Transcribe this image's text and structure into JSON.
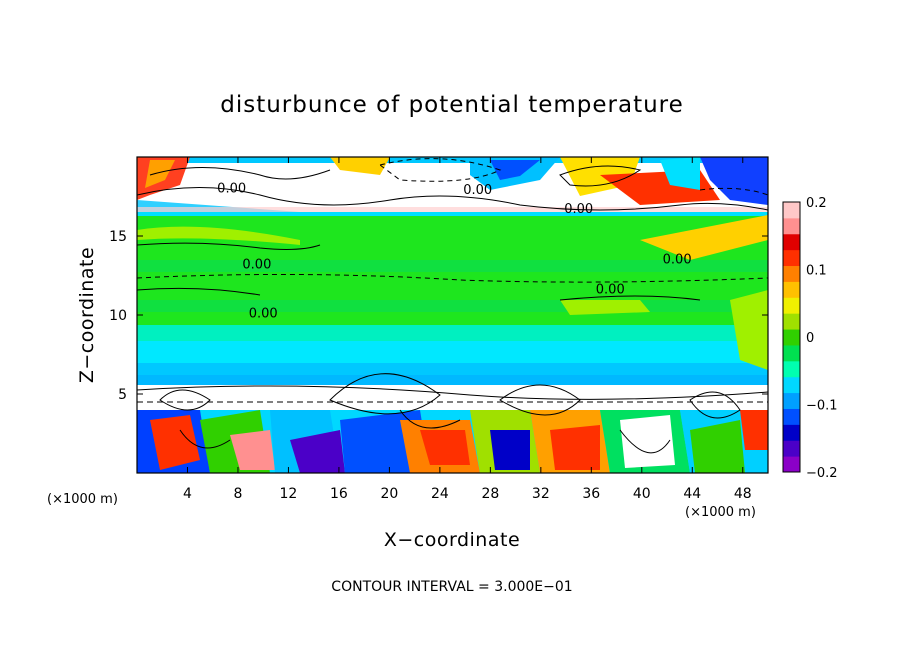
{
  "chart_data": {
    "type": "heatmap",
    "title": "disturbunce of potential temperature",
    "xlabel": "X−coordinate",
    "ylabel": "Z−coordinate",
    "x_unit": "(×1000 m)",
    "y_unit": "(×1000 m)",
    "xlim": [
      0,
      50
    ],
    "ylim": [
      0,
      20
    ],
    "x_ticks": [
      4,
      8,
      12,
      16,
      20,
      24,
      28,
      32,
      36,
      40,
      44,
      48
    ],
    "y_ticks": [
      5,
      10,
      15
    ],
    "colorbar": {
      "min": -0.2,
      "max": 0.2,
      "ticks": [
        {
          "value": 0.2,
          "label": "0.2"
        },
        {
          "value": 0.1,
          "label": "0.1"
        },
        {
          "value": 0,
          "label": "0"
        },
        {
          "value": -0.1,
          "label": "−0.1"
        },
        {
          "value": -0.2,
          "label": "−0.2"
        }
      ],
      "colors": [
        "#8b00c8",
        "#4b00c8",
        "#0000c8",
        "#0050ff",
        "#00a0ff",
        "#00d8ff",
        "#00ffb0",
        "#00e050",
        "#30d000",
        "#a0e000",
        "#f0f000",
        "#ffc000",
        "#ff8000",
        "#ff3000",
        "#e00000",
        "#ff9090",
        "#ffc8c8"
      ]
    },
    "contour_labels": [
      {
        "x": 7.5,
        "z": 18.0,
        "label": "0.00"
      },
      {
        "x": 27.0,
        "z": 17.9,
        "label": "0.00"
      },
      {
        "x": 35.0,
        "z": 16.7,
        "label": "0.00"
      },
      {
        "x": 9.5,
        "z": 13.2,
        "label": "0.00"
      },
      {
        "x": 37.5,
        "z": 11.6,
        "label": "0.00"
      },
      {
        "x": 42.8,
        "z": 13.5,
        "label": "0.00"
      },
      {
        "x": 10.0,
        "z": 10.1,
        "label": "0.00"
      }
    ],
    "contour_interval_note": "CONTOUR INTERVAL = 3.000E−01"
  }
}
